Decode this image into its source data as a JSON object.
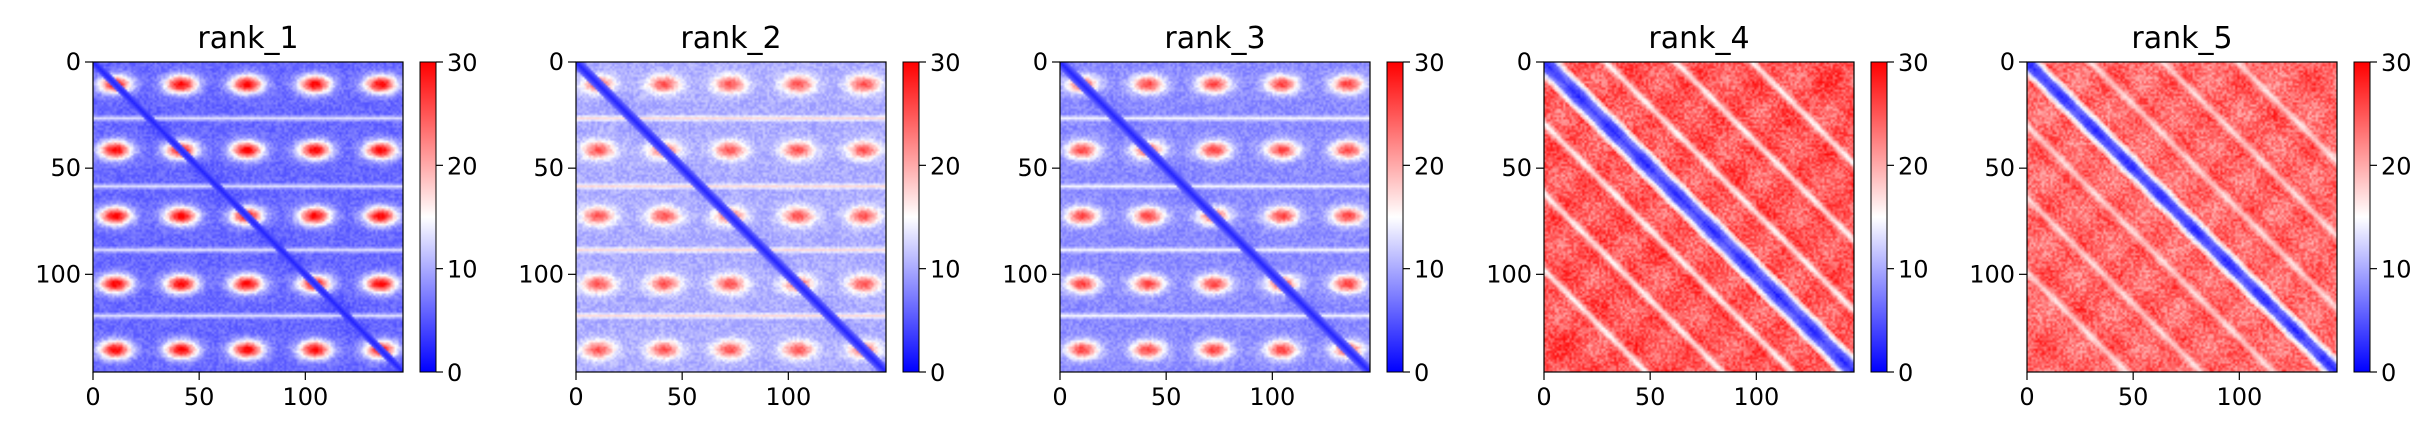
{
  "colorbar": {
    "colors": [
      "#0000ff",
      "#ffffff",
      "#ff0000"
    ],
    "range": [
      0,
      30
    ],
    "center": 15,
    "ticks": [
      0,
      10,
      20,
      30
    ]
  },
  "axes": {
    "x_ticks": [
      0,
      50,
      100
    ],
    "y_ticks": [
      0,
      50,
      100
    ],
    "extent": [
      0,
      146
    ]
  },
  "chart_data": [
    {
      "type": "heatmap",
      "title": "rank_1",
      "xlabel": "",
      "ylabel": "",
      "xlim": [
        0,
        146
      ],
      "ylim": [
        146,
        0
      ],
      "vmin": 0,
      "vmax": 30,
      "pattern": "repeats",
      "repeat_centers": [
        10,
        41,
        72,
        104,
        135
      ],
      "stripe_positions": [
        26,
        58,
        88,
        119
      ],
      "base_distance": 5,
      "block_peak": 29,
      "stripe_value": 16,
      "offdiag_spread": 2
    },
    {
      "type": "heatmap",
      "title": "rank_2",
      "xlabel": "",
      "ylabel": "",
      "xlim": [
        0,
        146
      ],
      "ylim": [
        146,
        0
      ],
      "vmin": 0,
      "vmax": 30,
      "pattern": "repeats",
      "repeat_centers": [
        10,
        41,
        72,
        104,
        135
      ],
      "stripe_positions": [
        26,
        58,
        88,
        119
      ],
      "base_distance": 9,
      "block_peak": 24,
      "stripe_value": 20,
      "offdiag_spread": 3
    },
    {
      "type": "heatmap",
      "title": "rank_3",
      "xlabel": "",
      "ylabel": "",
      "xlim": [
        0,
        146
      ],
      "ylim": [
        146,
        0
      ],
      "vmin": 0,
      "vmax": 30,
      "pattern": "repeats",
      "repeat_centers": [
        10,
        41,
        72,
        104,
        135
      ],
      "stripe_positions": [
        26,
        58,
        88,
        119
      ],
      "base_distance": 7,
      "block_peak": 25,
      "stripe_value": 17,
      "offdiag_spread": 3
    },
    {
      "type": "heatmap",
      "title": "rank_4",
      "xlabel": "",
      "ylabel": "",
      "xlim": [
        0,
        146
      ],
      "ylim": [
        146,
        0
      ],
      "vmin": 0,
      "vmax": 30,
      "pattern": "hairpin",
      "near_diag_width": 4,
      "parallel_bands": [
        29,
        62,
        98
      ],
      "base_distance": 25,
      "band_value": 13
    },
    {
      "type": "heatmap",
      "title": "rank_5",
      "xlabel": "",
      "ylabel": "",
      "xlim": [
        0,
        146
      ],
      "ylim": [
        146,
        0
      ],
      "vmin": 0,
      "vmax": 30,
      "pattern": "hairpin",
      "near_diag_width": 3,
      "parallel_bands": [
        30,
        64,
        99
      ],
      "base_distance": 24,
      "band_value": 15
    }
  ]
}
